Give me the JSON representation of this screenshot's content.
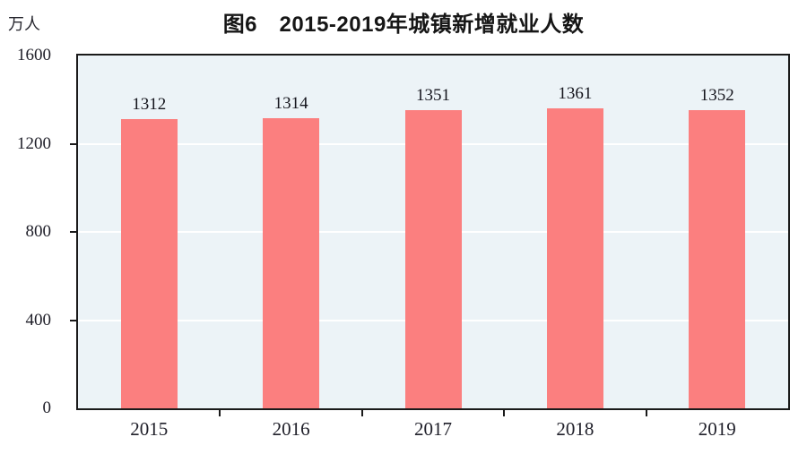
{
  "chart_data": {
    "type": "bar",
    "title": "图6　2015-2019年城镇新增就业人数",
    "unit_label": "万人",
    "categories": [
      "2015",
      "2016",
      "2017",
      "2018",
      "2019"
    ],
    "values": [
      1312,
      1314,
      1351,
      1361,
      1352
    ],
    "ylim": [
      0,
      1600
    ],
    "yticks": [
      0,
      400,
      800,
      1200,
      1600
    ],
    "grid": "on",
    "legend": "none",
    "colors": {
      "bar_fill": "#FB7F7F",
      "plot_background": "#ECF3F7",
      "gridline": "#FFFFFF",
      "axis_border": "#1A1A1A",
      "label_text": "#20202A"
    }
  }
}
